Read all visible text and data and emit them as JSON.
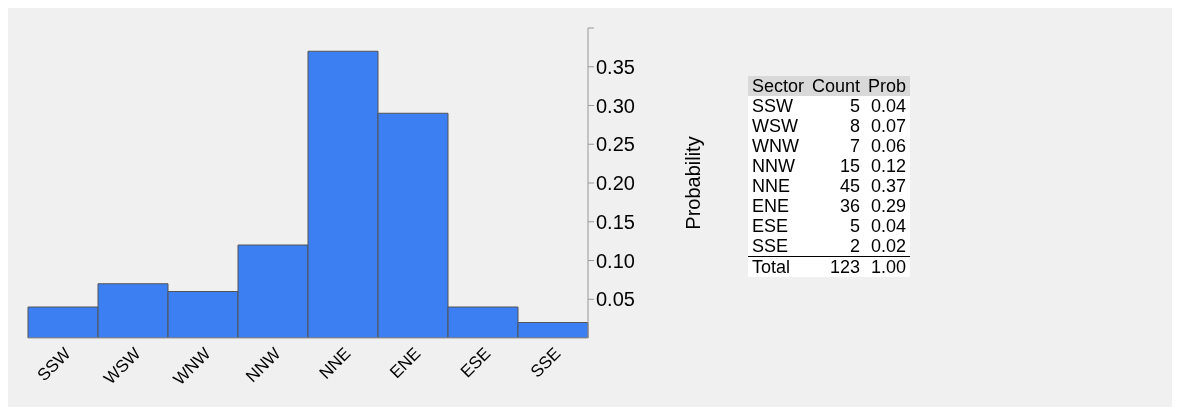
{
  "chart_data": {
    "type": "bar",
    "ylabel": "Probability",
    "categories": [
      "SSW",
      "WSW",
      "WNW",
      "NNW",
      "NNE",
      "ENE",
      "ESE",
      "SSE"
    ],
    "values": [
      0.04,
      0.07,
      0.06,
      0.12,
      0.37,
      0.29,
      0.04,
      0.02
    ],
    "color": "#3b7ff2",
    "ylim": [
      0,
      0.4
    ],
    "yticks": [
      0.05,
      {
        "value": 0.1,
        "label": "0.10"
      },
      0.15,
      {
        "value": 0.2,
        "label": "0.20"
      },
      0.25,
      {
        "value": 0.3,
        "label": "0.30"
      },
      0.35,
      {
        "value": 0.4,
        "label": null
      }
    ],
    "grid": false,
    "annotations": [
      "Sector",
      "Count",
      "Prob",
      "5",
      "8",
      "7",
      "15",
      "45",
      "36",
      "5",
      "2",
      "0.04",
      "0.07",
      "0.06",
      "0.12",
      "0.37",
      "0.29",
      "0.04",
      "0.02",
      "Total",
      "123",
      "1.00"
    ]
  }
}
